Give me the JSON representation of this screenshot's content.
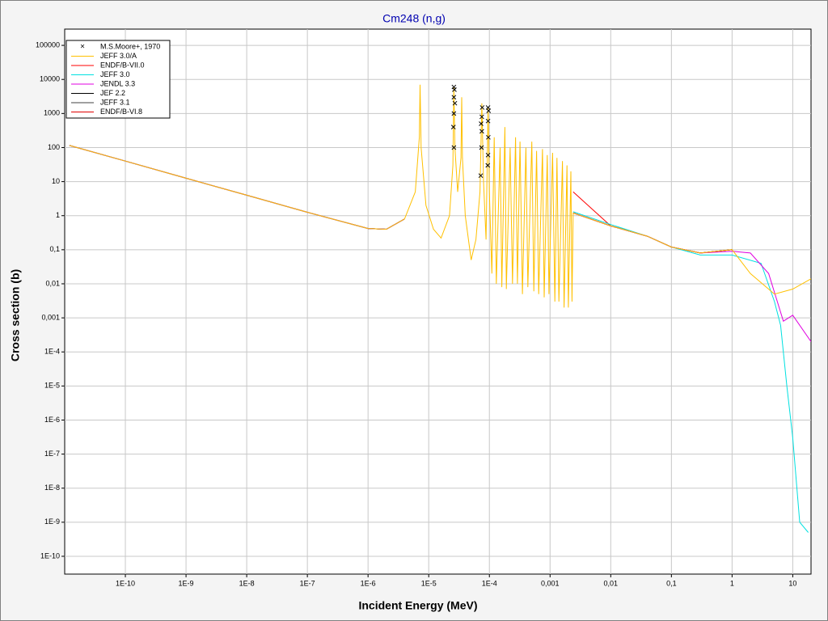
{
  "chart_data": {
    "type": "line",
    "title": "Cm248 (n,g)",
    "x_label": "Incident Energy (MeV)",
    "y_label": "Cross section (b)",
    "xscale": "log",
    "yscale": "log",
    "grid": true,
    "legend": "upper left",
    "xlim": [
      1e-11,
      20
    ],
    "ylim": [
      3e-11,
      300000
    ],
    "xticks": [
      {
        "value": 1e-10,
        "label": "1E-10"
      },
      {
        "value": 1e-09,
        "label": "1E-9"
      },
      {
        "value": 1e-08,
        "label": "1E-8"
      },
      {
        "value": 1e-07,
        "label": "1E-7"
      },
      {
        "value": 1e-06,
        "label": "1E-6"
      },
      {
        "value": 1e-05,
        "label": "1E-5"
      },
      {
        "value": 0.0001,
        "label": "1E-4"
      },
      {
        "value": 0.001,
        "label": "0,001"
      },
      {
        "value": 0.01,
        "label": "0,01"
      },
      {
        "value": 0.1,
        "label": "0,1"
      },
      1,
      10
    ],
    "yticks": [
      100000,
      10000,
      1000,
      100,
      10,
      1,
      {
        "value": 0.1,
        "label": "0,1"
      },
      {
        "value": 0.01,
        "label": "0,01"
      },
      {
        "value": 0.001,
        "label": "0,001"
      },
      {
        "value": 0.0001,
        "label": "1E-4"
      },
      {
        "value": 1e-05,
        "label": "1E-5"
      },
      {
        "value": 1e-06,
        "label": "1E-6"
      },
      {
        "value": 1e-07,
        "label": "1E-7"
      },
      {
        "value": 1e-08,
        "label": "1E-8"
      },
      {
        "value": 1e-09,
        "label": "1E-9"
      },
      {
        "value": 1e-10,
        "label": "1E-10"
      }
    ],
    "series": [
      {
        "name": "M.S.Moore+, 1970",
        "color": "#000000",
        "marker": "x",
        "x": [
          2.55e-05,
          2.6e-05,
          2.6e-05,
          2.65e-05,
          2.6e-05,
          2.7e-05,
          2.6e-05,
          7.2e-05,
          7.4e-05,
          7.5e-05,
          7.5e-05,
          7.6e-05,
          7.3e-05,
          9.4e-05,
          9.5e-05,
          9.6e-05,
          9.5e-05,
          9.7e-05,
          9.5e-05
        ],
        "values": [
          400,
          1000,
          3000,
          5000,
          6000,
          2000,
          100,
          15,
          100,
          300,
          800,
          1500,
          500,
          30,
          60,
          200,
          600,
          1200,
          1500
        ]
      },
      {
        "name": "ENDF/B-VII.0",
        "color": "#ff0000",
        "x": [
          1.2e-11,
          1e-10,
          1e-09,
          1e-08,
          1e-07,
          1e-06,
          2e-06,
          4e-06,
          5e-06,
          0.0024,
          0.01,
          0.04,
          0.1,
          0.3,
          1
        ],
        "values": [
          115,
          40,
          12.6,
          4,
          1.26,
          0.42,
          0.4,
          0.8,
          null,
          5,
          0.5,
          0.25,
          0.12,
          0.08,
          0.1
        ]
      },
      {
        "name": "JEF 2.2",
        "color": "#000000",
        "x": [
          1.2e-11,
          1e-10,
          1e-09,
          1e-08,
          1e-07,
          1e-06,
          2e-06,
          4e-06,
          5e-06,
          0.0024,
          0.01,
          0.04,
          0.1,
          0.3,
          1
        ],
        "values": [
          115,
          40,
          12.6,
          4,
          1.26,
          0.42,
          0.4,
          0.8,
          null,
          1.2,
          0.5,
          0.25,
          0.12,
          0.08,
          0.1
        ]
      },
      {
        "name": "JEFF 3.1",
        "color": "#404040",
        "x": [
          1.2e-11,
          1e-10,
          1e-09,
          1e-08,
          1e-07,
          1e-06,
          2e-06,
          4e-06,
          5e-06,
          0.0024,
          0.01,
          0.04,
          0.1,
          0.3,
          1
        ],
        "values": [
          115,
          40,
          12.6,
          4,
          1.26,
          0.42,
          0.4,
          0.8,
          null,
          1.2,
          0.5,
          0.25,
          0.12,
          0.08,
          0.1
        ]
      },
      {
        "name": "ENDF/B-VI.8",
        "color": "#e00000",
        "x": [
          1.2e-11,
          1e-10,
          1e-09,
          1e-08,
          1e-07,
          1e-06,
          2e-06,
          4e-06,
          5e-06,
          0.0024,
          0.01,
          0.04,
          0.1,
          0.3,
          1
        ],
        "values": [
          115,
          40,
          12.6,
          4,
          1.26,
          0.42,
          0.4,
          0.8,
          null,
          1.2,
          0.5,
          0.25,
          0.12,
          0.08,
          0.1
        ]
      },
      {
        "name": "JEFF 3.0",
        "color": "#00e0e0",
        "x": [
          1.2e-11,
          1e-10,
          1e-09,
          1e-08,
          1e-07,
          1e-06,
          2e-06,
          4e-06,
          5e-06,
          0.0024,
          0.01,
          0.04,
          0.1,
          0.3,
          1,
          3,
          5,
          6.3,
          8,
          10,
          13,
          18
        ],
        "values": [
          115,
          40,
          12.6,
          4,
          1.26,
          0.42,
          0.4,
          0.8,
          null,
          1.3,
          0.55,
          0.25,
          0.12,
          0.07,
          0.07,
          0.04,
          0.003,
          0.0006,
          1e-05,
          3e-07,
          1e-09,
          5e-10
        ]
      },
      {
        "name": "JENDL 3.3",
        "color": "#e000e0",
        "x": [
          1.2e-11,
          1e-10,
          1e-09,
          1e-08,
          1e-07,
          1e-06,
          2e-06,
          4e-06,
          5e-06,
          0.0024,
          0.01,
          0.04,
          0.1,
          0.3,
          1,
          2,
          4,
          7,
          10,
          20
        ],
        "values": [
          115,
          40,
          12.6,
          4,
          1.26,
          0.42,
          0.4,
          0.8,
          null,
          1.2,
          0.5,
          0.25,
          0.12,
          0.08,
          0.09,
          0.08,
          0.02,
          0.0008,
          0.0012,
          0.0002
        ]
      },
      {
        "name": "JEFF 3.0/A",
        "color": "#ffc000",
        "x": [
          1.2e-11,
          1e-10,
          1e-09,
          1e-08,
          1e-07,
          1e-06,
          2e-06,
          4e-06,
          6e-06,
          7e-06,
          7.2e-06,
          7.5e-06,
          9e-06,
          1.2e-05,
          1.6e-05,
          2.2e-05,
          2.5e-05,
          2.6e-05,
          2.7e-05,
          3e-05,
          3.4e-05,
          3.5e-05,
          3.6e-05,
          4e-05,
          5e-05,
          6e-05,
          7e-05,
          7.5e-05,
          8e-05,
          8.8e-05,
          9.5e-05,
          0.0001,
          0.00011,
          0.00012,
          0.00013,
          0.00015,
          0.00016,
          0.00018,
          0.00019,
          0.00022,
          0.00024,
          0.00027,
          0.00029,
          0.00032,
          0.00035,
          0.0004,
          0.00043,
          0.0005,
          0.00054,
          0.0006,
          0.00065,
          0.00075,
          0.0008,
          0.0009,
          0.00096,
          0.0011,
          0.0012,
          0.0013,
          0.0014,
          0.0016,
          0.0017,
          0.0019,
          0.002,
          0.0022,
          0.0023,
          0.0024,
          0.01,
          0.04,
          0.1,
          0.3,
          1,
          2,
          5,
          10,
          20
        ],
        "values": [
          115,
          40,
          12.6,
          4,
          1.26,
          0.42,
          0.4,
          0.8,
          5,
          200,
          7000,
          100,
          2,
          0.4,
          0.22,
          1,
          30,
          6000,
          100,
          5,
          50,
          3000,
          50,
          1,
          0.05,
          0.2,
          5,
          2000,
          10,
          0.2,
          1500,
          5,
          0.02,
          200,
          0.01,
          100,
          0.008,
          400,
          0.007,
          100,
          0.01,
          200,
          0.01,
          150,
          0.005,
          100,
          0.008,
          150,
          0.006,
          80,
          0.005,
          90,
          0.004,
          60,
          0.005,
          70,
          0.003,
          50,
          0.003,
          40,
          0.002,
          30,
          0.002,
          20,
          0.003,
          1.2,
          0.5,
          0.25,
          0.12,
          0.08,
          0.1,
          0.02,
          0.005,
          0.007,
          0.014
        ]
      }
    ]
  }
}
